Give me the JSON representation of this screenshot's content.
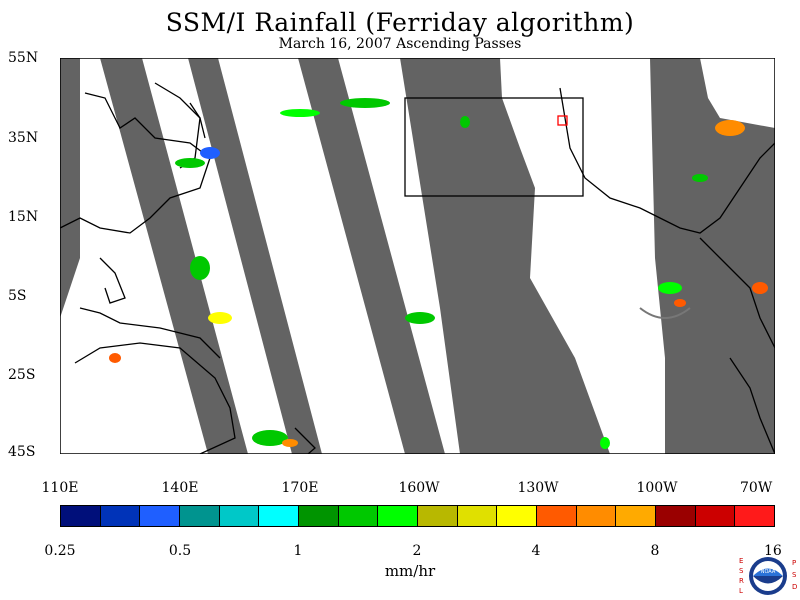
{
  "title": "SSM/I Rainfall (Ferriday algorithm)",
  "subtitle": "March 16, 2007  Ascending Passes",
  "lat_labels": [
    "55N",
    "35N",
    "15N",
    "5S",
    "25S",
    "45S"
  ],
  "lon_labels": [
    "110E",
    "140E",
    "170E",
    "160W",
    "130W",
    "100W",
    "70W"
  ],
  "colorbar": {
    "colors": [
      "#000f7a",
      "#0033b8",
      "#1f5fff",
      "#00948f",
      "#00c8c8",
      "#00ffff",
      "#009400",
      "#00c800",
      "#00ff00",
      "#b8b800",
      "#e0e000",
      "#ffff00",
      "#ff5a00",
      "#ff8c00",
      "#ffaa00",
      "#9a0000",
      "#cc0000",
      "#ff1a1a"
    ],
    "tick_labels": [
      "0.25",
      "0.5",
      "1",
      "2",
      "4",
      "8",
      "16"
    ],
    "unit": "mm/hr"
  },
  "logo": {
    "left_letters": "ESRL",
    "right_letters": "PSD",
    "badge": "NOAA"
  },
  "colors": {
    "swath_gap": "#636363",
    "land_outline": "#000000",
    "box_outline": "#000000",
    "highlight_box": "#ff0000"
  }
}
